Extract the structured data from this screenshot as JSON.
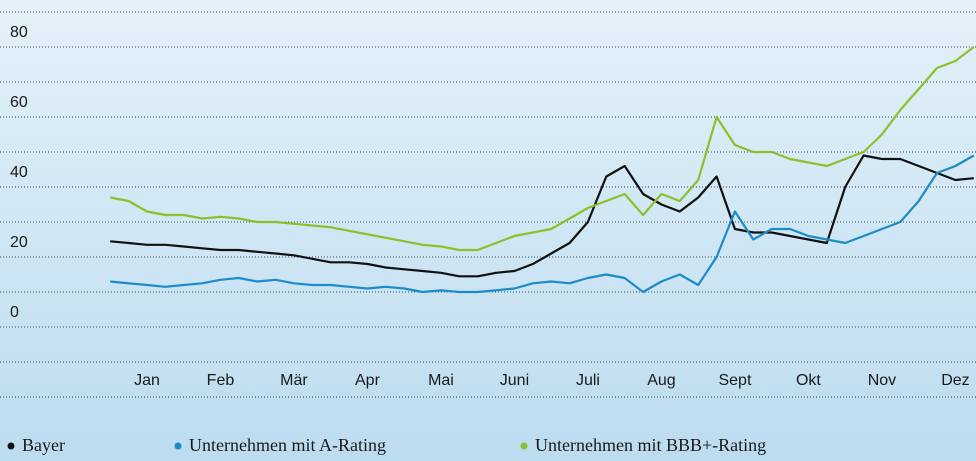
{
  "chart_data": {
    "type": "line",
    "x": [
      0,
      0.25,
      0.5,
      0.75,
      1,
      1.25,
      1.5,
      1.75,
      2,
      2.25,
      2.5,
      2.75,
      3,
      3.25,
      3.5,
      3.75,
      4,
      4.25,
      4.5,
      4.75,
      5,
      5.25,
      5.5,
      5.75,
      6,
      6.25,
      6.5,
      6.75,
      7,
      7.25,
      7.5,
      7.75,
      8,
      8.25,
      8.5,
      8.75,
      9,
      9.25,
      9.5,
      9.75,
      10,
      10.25,
      10.5,
      10.75,
      11,
      11.25,
      11.5,
      11.75
    ],
    "xlim": [
      -0.18,
      11.78
    ],
    "xticks": [
      {
        "value": 0.5,
        "label": "Jan"
      },
      {
        "value": 1.5,
        "label": "Feb"
      },
      {
        "value": 2.5,
        "label": "Mär"
      },
      {
        "value": 3.5,
        "label": "Apr"
      },
      {
        "value": 4.5,
        "label": "Mai"
      },
      {
        "value": 5.5,
        "label": "Juni"
      },
      {
        "value": 6.5,
        "label": "Juli"
      },
      {
        "value": 7.5,
        "label": "Aug"
      },
      {
        "value": 8.5,
        "label": "Sept"
      },
      {
        "value": 9.5,
        "label": "Okt"
      },
      {
        "value": 10.5,
        "label": "Nov"
      },
      {
        "value": 11.5,
        "label": "Dez"
      }
    ],
    "ylim": [
      -20,
      90
    ],
    "yticks": [
      0,
      20,
      40,
      60,
      80
    ],
    "grid_lines": [
      -20,
      -10,
      0,
      10,
      20,
      30,
      40,
      50,
      60,
      70,
      80,
      90
    ],
    "grid": true,
    "legend": "bottom",
    "series": [
      {
        "name": "Bayer",
        "color": "#111111",
        "values": [
          24.5,
          24,
          23.5,
          23.5,
          23,
          22.5,
          22,
          22,
          21.5,
          21,
          20.5,
          19.5,
          18.5,
          18.5,
          18,
          17,
          16.5,
          16,
          15.5,
          14.5,
          14.5,
          15.5,
          16,
          18,
          21,
          24,
          30,
          43,
          46,
          38,
          35,
          33,
          37,
          43,
          28,
          27,
          27,
          26,
          25,
          24,
          40,
          49,
          48,
          48,
          46,
          44,
          42,
          42.5
        ]
      },
      {
        "name": "Unternehmen mit A-Rating",
        "color": "#1b8cc6",
        "values": [
          13,
          12.5,
          12,
          11.5,
          12,
          12.5,
          13.5,
          14,
          13,
          13.5,
          12.5,
          12,
          12,
          11.5,
          11,
          11.5,
          11,
          10,
          10.5,
          10,
          10,
          10.5,
          11,
          12.5,
          13,
          12.5,
          14,
          15,
          14,
          10,
          13,
          15,
          12,
          20,
          33,
          25,
          28,
          28,
          26,
          25,
          24,
          26,
          28,
          30,
          36,
          44,
          46,
          49
        ]
      },
      {
        "name": "Unternehmen mit BBB+-Rating",
        "color": "#8dbf2b",
        "values": [
          37,
          36,
          33,
          32,
          32,
          31,
          31.5,
          31,
          30,
          30,
          29.5,
          29,
          28.5,
          27.5,
          26.5,
          25.5,
          24.5,
          23.5,
          23,
          22,
          22,
          24,
          26,
          27,
          28,
          31,
          34,
          36,
          38,
          32,
          38,
          36,
          42,
          60,
          52,
          50,
          50,
          48,
          47,
          46,
          48,
          50,
          55,
          62,
          68,
          74,
          76,
          80
        ]
      }
    ]
  }
}
